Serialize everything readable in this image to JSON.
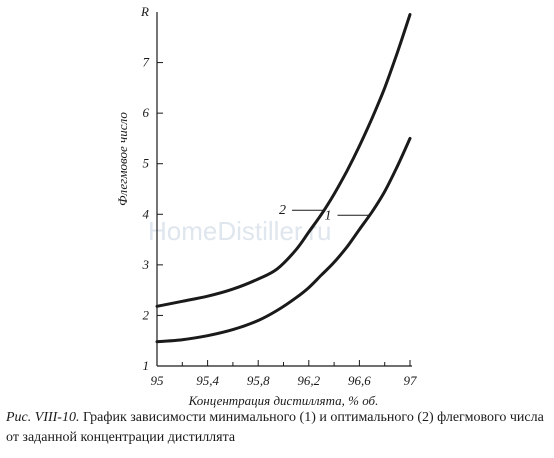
{
  "watermark": "HomeDistiller.ru",
  "caption": {
    "figure": "Рис. VIII-10.",
    "text": "График зависимости минимального (1) и оптимального (2) флегмового числа от заданной концентрации дистиллята"
  },
  "chart_data": {
    "type": "line",
    "title": "",
    "xlabel": "Концентрация дистиллята, % об.",
    "ylabel": "Флегмовое число",
    "y_axis_symbol": "R",
    "xlim": [
      95,
      97
    ],
    "ylim": [
      1,
      8
    ],
    "x_ticks": [
      "95",
      "95,4",
      "95,8",
      "96,2",
      "96,6",
      "97"
    ],
    "x_tick_values": [
      95,
      95.4,
      95.8,
      96.2,
      96.6,
      97
    ],
    "y_ticks": [
      "1",
      "2",
      "3",
      "4",
      "5",
      "6",
      "7"
    ],
    "y_tick_values": [
      1,
      2,
      3,
      4,
      5,
      6,
      7
    ],
    "grid": false,
    "series": [
      {
        "name": "1",
        "x": [
          95.0,
          95.2,
          95.4,
          95.6,
          95.8,
          95.95,
          96.1,
          96.2,
          96.3,
          96.4,
          96.5,
          96.6,
          96.7,
          96.8,
          96.9,
          97.0
        ],
        "y": [
          1.48,
          1.52,
          1.6,
          1.72,
          1.9,
          2.1,
          2.35,
          2.55,
          2.8,
          3.05,
          3.35,
          3.7,
          4.05,
          4.45,
          4.95,
          5.5
        ]
      },
      {
        "name": "2",
        "x": [
          95.0,
          95.2,
          95.4,
          95.6,
          95.8,
          95.95,
          96.1,
          96.2,
          96.3,
          96.4,
          96.5,
          96.6,
          96.7,
          96.8,
          96.9,
          97.0
        ],
        "y": [
          2.18,
          2.28,
          2.38,
          2.52,
          2.72,
          2.92,
          3.3,
          3.65,
          4.0,
          4.4,
          4.85,
          5.35,
          5.9,
          6.5,
          7.2,
          7.95
        ]
      }
    ],
    "annotations": [
      {
        "text": "2",
        "series": "2",
        "at_x": 96.32
      },
      {
        "text": "1",
        "series": "1",
        "at_x": 96.68
      }
    ]
  }
}
